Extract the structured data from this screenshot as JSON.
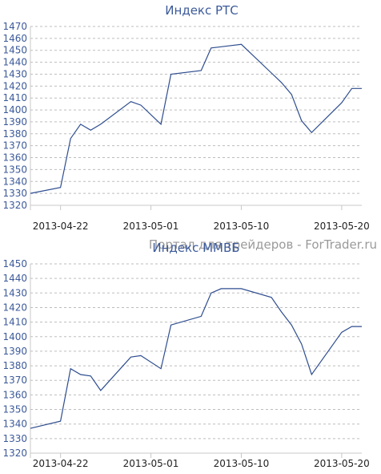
{
  "watermark": "Портал для трейдеров - ForTrader.ru",
  "chart_data": [
    {
      "type": "line",
      "title": "Индекс РТС",
      "xlabel": "",
      "ylabel": "",
      "ylim": [
        1320,
        1470
      ],
      "y_step": 10,
      "grid": true,
      "x_tick_labels": [
        "2013-04-22",
        "2013-05-01",
        "2013-05-10",
        "2013-05-20"
      ],
      "x": [
        "2013-04-19",
        "2013-04-22",
        "2013-04-23",
        "2013-04-24",
        "2013-04-25",
        "2013-04-26",
        "2013-04-29",
        "2013-04-30",
        "2013-05-02",
        "2013-05-03",
        "2013-05-06",
        "2013-05-07",
        "2013-05-08",
        "2013-05-10",
        "2013-05-13",
        "2013-05-14",
        "2013-05-15",
        "2013-05-16",
        "2013-05-17",
        "2013-05-20",
        "2013-05-21",
        "2013-05-22"
      ],
      "series": [
        {
          "values": [
            1330,
            1335,
            1376,
            1388,
            1383,
            1388,
            1407,
            1404,
            1388,
            1430,
            1433,
            1452,
            1453,
            1455,
            1431,
            1423,
            1413,
            1391,
            1381,
            1406,
            1418,
            1418
          ]
        }
      ]
    },
    {
      "type": "line",
      "title": "Индекс ММВБ",
      "xlabel": "",
      "ylabel": "",
      "ylim": [
        1320,
        1450
      ],
      "y_step": 10,
      "grid": true,
      "x_tick_labels": [
        "2013-04-22",
        "2013-05-01",
        "2013-05-10",
        "2013-05-20"
      ],
      "x": [
        "2013-04-19",
        "2013-04-22",
        "2013-04-23",
        "2013-04-24",
        "2013-04-25",
        "2013-04-26",
        "2013-04-29",
        "2013-04-30",
        "2013-05-02",
        "2013-05-03",
        "2013-05-06",
        "2013-05-07",
        "2013-05-08",
        "2013-05-10",
        "2013-05-13",
        "2013-05-14",
        "2013-05-15",
        "2013-05-16",
        "2013-05-17",
        "2013-05-20",
        "2013-05-21",
        "2013-05-22"
      ],
      "series": [
        {
          "values": [
            1337,
            1342,
            1378,
            1374,
            1373,
            1363,
            1386,
            1387,
            1378,
            1408,
            1414,
            1430,
            1433,
            1433,
            1427,
            1417,
            1408,
            1395,
            1374,
            1403,
            1407,
            1407
          ]
        }
      ]
    }
  ]
}
